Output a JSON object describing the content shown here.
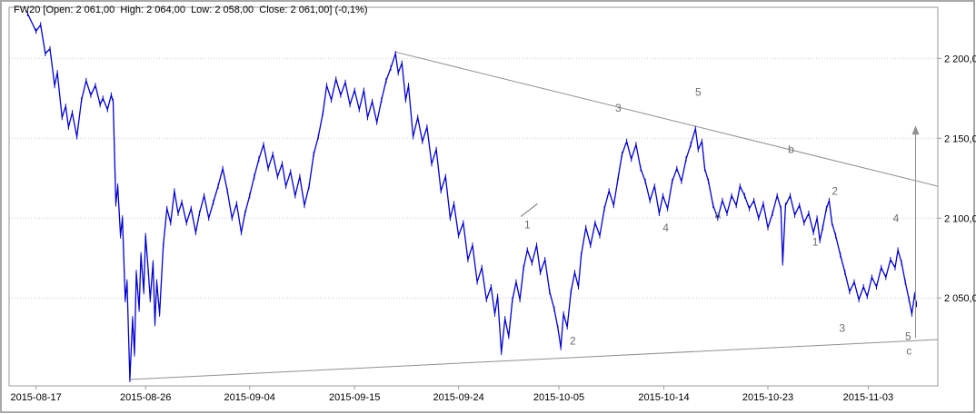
{
  "header": {
    "info": "FW20 [Open: 2 061,00  High: 2 064,00  Low: 2 058,00  Close: 2 061,00] (-0,1%)"
  },
  "colors": {
    "background": "#ffffff",
    "price": "#0000d0",
    "grid": "#c9c9c9",
    "frame": "#9a9a9a",
    "trend": "#8f8f8f",
    "annotation": "#6e6e6e",
    "text": "#000000",
    "window_border": "#a8a8a8"
  },
  "chart_data": {
    "type": "line",
    "title": "FW20",
    "instrument": "FW20",
    "open": "2 061,00",
    "high": "2 064,00",
    "low": "2 058,00",
    "close": "2 061,00",
    "change": "-0,1%",
    "xlabel": "",
    "ylabel": "",
    "grid": "horizontal",
    "legend_position": "none",
    "ylim": [
      1995,
      2232
    ],
    "y_ticks": [
      {
        "value": 2200,
        "label": "2 200,0"
      },
      {
        "value": 2150,
        "label": "2 150,0"
      },
      {
        "value": 2100,
        "label": "2 100,0"
      },
      {
        "value": 2050,
        "label": "2 050,0"
      }
    ],
    "x_ticks": [
      {
        "u": 0.029,
        "label": "2015-08-17"
      },
      {
        "u": 0.147,
        "label": "2015-08-26"
      },
      {
        "u": 0.259,
        "label": "2015-09-04"
      },
      {
        "u": 0.372,
        "label": "2015-09-15"
      },
      {
        "u": 0.484,
        "label": "2015-09-24"
      },
      {
        "u": 0.592,
        "label": "2015-10-05"
      },
      {
        "u": 0.705,
        "label": "2015-10-14"
      },
      {
        "u": 0.817,
        "label": "2015-10-23"
      },
      {
        "u": 0.925,
        "label": "2015-11-03"
      }
    ],
    "series": [
      {
        "name": "FW20 price",
        "points": [
          [
            0.02,
            2228
          ],
          [
            0.029,
            2217
          ],
          [
            0.034,
            2221
          ],
          [
            0.039,
            2203
          ],
          [
            0.044,
            2206
          ],
          [
            0.049,
            2183
          ],
          [
            0.052,
            2191
          ],
          [
            0.057,
            2163
          ],
          [
            0.061,
            2170
          ],
          [
            0.064,
            2157
          ],
          [
            0.068,
            2166
          ],
          [
            0.073,
            2151
          ],
          [
            0.078,
            2174
          ],
          [
            0.083,
            2186
          ],
          [
            0.088,
            2177
          ],
          [
            0.093,
            2183
          ],
          [
            0.098,
            2171
          ],
          [
            0.101,
            2175
          ],
          [
            0.106,
            2168
          ],
          [
            0.11,
            2177
          ],
          [
            0.112,
            2173
          ],
          [
            0.115,
            2109
          ],
          [
            0.117,
            2120
          ],
          [
            0.12,
            2089
          ],
          [
            0.122,
            2100
          ],
          [
            0.125,
            2049
          ],
          [
            0.127,
            2060
          ],
          [
            0.13,
            1999
          ],
          [
            0.133,
            2037
          ],
          [
            0.135,
            2015
          ],
          [
            0.137,
            2066
          ],
          [
            0.14,
            2043
          ],
          [
            0.142,
            2077
          ],
          [
            0.145,
            2054
          ],
          [
            0.147,
            2089
          ],
          [
            0.15,
            2066
          ],
          [
            0.152,
            2049
          ],
          [
            0.155,
            2072
          ],
          [
            0.157,
            2034
          ],
          [
            0.159,
            2060
          ],
          [
            0.162,
            2040
          ],
          [
            0.166,
            2083
          ],
          [
            0.17,
            2106
          ],
          [
            0.174,
            2097
          ],
          [
            0.178,
            2117
          ],
          [
            0.182,
            2103
          ],
          [
            0.186,
            2110
          ],
          [
            0.191,
            2097
          ],
          [
            0.196,
            2106
          ],
          [
            0.201,
            2091
          ],
          [
            0.205,
            2103
          ],
          [
            0.21,
            2114
          ],
          [
            0.215,
            2100
          ],
          [
            0.22,
            2110
          ],
          [
            0.225,
            2120
          ],
          [
            0.23,
            2131
          ],
          [
            0.235,
            2117
          ],
          [
            0.24,
            2100
          ],
          [
            0.245,
            2109
          ],
          [
            0.25,
            2091
          ],
          [
            0.254,
            2103
          ],
          [
            0.259,
            2114
          ],
          [
            0.264,
            2126
          ],
          [
            0.269,
            2137
          ],
          [
            0.274,
            2146
          ],
          [
            0.279,
            2131
          ],
          [
            0.284,
            2140
          ],
          [
            0.289,
            2126
          ],
          [
            0.294,
            2134
          ],
          [
            0.298,
            2120
          ],
          [
            0.303,
            2129
          ],
          [
            0.308,
            2114
          ],
          [
            0.313,
            2126
          ],
          [
            0.318,
            2108
          ],
          [
            0.323,
            2120
          ],
          [
            0.328,
            2140
          ],
          [
            0.333,
            2151
          ],
          [
            0.338,
            2166
          ],
          [
            0.342,
            2183
          ],
          [
            0.347,
            2174
          ],
          [
            0.352,
            2187
          ],
          [
            0.357,
            2177
          ],
          [
            0.362,
            2185
          ],
          [
            0.367,
            2171
          ],
          [
            0.372,
            2180
          ],
          [
            0.377,
            2168
          ],
          [
            0.382,
            2180
          ],
          [
            0.386,
            2163
          ],
          [
            0.391,
            2173
          ],
          [
            0.396,
            2160
          ],
          [
            0.401,
            2174
          ],
          [
            0.406,
            2186
          ],
          [
            0.411,
            2194
          ],
          [
            0.416,
            2203
          ],
          [
            0.419,
            2191
          ],
          [
            0.423,
            2197
          ],
          [
            0.427,
            2174
          ],
          [
            0.43,
            2183
          ],
          [
            0.435,
            2151
          ],
          [
            0.44,
            2163
          ],
          [
            0.445,
            2148
          ],
          [
            0.45,
            2157
          ],
          [
            0.455,
            2134
          ],
          [
            0.46,
            2143
          ],
          [
            0.465,
            2117
          ],
          [
            0.47,
            2126
          ],
          [
            0.475,
            2100
          ],
          [
            0.479,
            2109
          ],
          [
            0.484,
            2089
          ],
          [
            0.489,
            2097
          ],
          [
            0.494,
            2074
          ],
          [
            0.499,
            2083
          ],
          [
            0.504,
            2060
          ],
          [
            0.509,
            2069
          ],
          [
            0.514,
            2049
          ],
          [
            0.519,
            2057
          ],
          [
            0.523,
            2040
          ],
          [
            0.526,
            2051
          ],
          [
            0.53,
            2016
          ],
          [
            0.534,
            2037
          ],
          [
            0.538,
            2026
          ],
          [
            0.542,
            2049
          ],
          [
            0.546,
            2060
          ],
          [
            0.55,
            2049
          ],
          [
            0.554,
            2069
          ],
          [
            0.558,
            2080
          ],
          [
            0.563,
            2072
          ],
          [
            0.568,
            2083
          ],
          [
            0.572,
            2066
          ],
          [
            0.577,
            2074
          ],
          [
            0.582,
            2054
          ],
          [
            0.587,
            2043
          ],
          [
            0.591,
            2031
          ],
          [
            0.594,
            2019
          ],
          [
            0.597,
            2040
          ],
          [
            0.601,
            2032
          ],
          [
            0.605,
            2054
          ],
          [
            0.609,
            2066
          ],
          [
            0.613,
            2057
          ],
          [
            0.616,
            2077
          ],
          [
            0.621,
            2094
          ],
          [
            0.626,
            2083
          ],
          [
            0.631,
            2097
          ],
          [
            0.636,
            2089
          ],
          [
            0.641,
            2106
          ],
          [
            0.646,
            2117
          ],
          [
            0.651,
            2108
          ],
          [
            0.656,
            2126
          ],
          [
            0.66,
            2140
          ],
          [
            0.665,
            2148
          ],
          [
            0.67,
            2137
          ],
          [
            0.675,
            2146
          ],
          [
            0.68,
            2131
          ],
          [
            0.685,
            2123
          ],
          [
            0.69,
            2111
          ],
          [
            0.695,
            2120
          ],
          [
            0.7,
            2103
          ],
          [
            0.704,
            2114
          ],
          [
            0.709,
            2106
          ],
          [
            0.714,
            2123
          ],
          [
            0.719,
            2131
          ],
          [
            0.724,
            2123
          ],
          [
            0.729,
            2137
          ],
          [
            0.734,
            2146
          ],
          [
            0.739,
            2156
          ],
          [
            0.742,
            2143
          ],
          [
            0.746,
            2148
          ],
          [
            0.749,
            2131
          ],
          [
            0.753,
            2123
          ],
          [
            0.758,
            2108
          ],
          [
            0.763,
            2100
          ],
          [
            0.768,
            2111
          ],
          [
            0.773,
            2103
          ],
          [
            0.778,
            2114
          ],
          [
            0.783,
            2108
          ],
          [
            0.787,
            2120
          ],
          [
            0.792,
            2114
          ],
          [
            0.797,
            2106
          ],
          [
            0.802,
            2111
          ],
          [
            0.807,
            2100
          ],
          [
            0.812,
            2109
          ],
          [
            0.817,
            2094
          ],
          [
            0.822,
            2103
          ],
          [
            0.827,
            2114
          ],
          [
            0.831,
            2106
          ],
          [
            0.833,
            2072
          ],
          [
            0.836,
            2108
          ],
          [
            0.841,
            2114
          ],
          [
            0.846,
            2102
          ],
          [
            0.851,
            2108
          ],
          [
            0.856,
            2097
          ],
          [
            0.861,
            2103
          ],
          [
            0.866,
            2091
          ],
          [
            0.87,
            2100
          ],
          [
            0.873,
            2086
          ],
          [
            0.876,
            2094
          ],
          [
            0.88,
            2106
          ],
          [
            0.883,
            2111
          ],
          [
            0.886,
            2097
          ],
          [
            0.89,
            2089
          ],
          [
            0.895,
            2077
          ],
          [
            0.9,
            2066
          ],
          [
            0.905,
            2054
          ],
          [
            0.91,
            2060
          ],
          [
            0.915,
            2049
          ],
          [
            0.92,
            2057
          ],
          [
            0.924,
            2051
          ],
          [
            0.929,
            2063
          ],
          [
            0.934,
            2057
          ],
          [
            0.939,
            2069
          ],
          [
            0.944,
            2063
          ],
          [
            0.949,
            2074
          ],
          [
            0.954,
            2069
          ],
          [
            0.957,
            2080
          ],
          [
            0.961,
            2072
          ],
          [
            0.965,
            2060
          ],
          [
            0.969,
            2049
          ],
          [
            0.972,
            2040
          ],
          [
            0.975,
            2052
          ],
          [
            0.977,
            2046
          ]
        ]
      }
    ],
    "trendlines": [
      {
        "name": "descending-resistance-trendline",
        "from": [
          0.416,
          2204
        ],
        "to": [
          1.0,
          2120
        ]
      },
      {
        "name": "ascending-support-trendline",
        "from": [
          0.13,
          1999
        ],
        "to": [
          1.0,
          2024
        ]
      }
    ],
    "arrow": {
      "x_u": 0.976,
      "from_price": 2025,
      "to_price": 2158
    },
    "marker_line": {
      "from": [
        0.551,
        2101
      ],
      "to": [
        0.569,
        2109
      ]
    },
    "wave_labels": [
      {
        "text": "1",
        "u": 0.558,
        "price": 2096
      },
      {
        "text": "2",
        "u": 0.607,
        "price": 2023
      },
      {
        "text": "3",
        "u": 0.656,
        "price": 2169
      },
      {
        "text": "4",
        "u": 0.707,
        "price": 2094
      },
      {
        "text": "5",
        "u": 0.742,
        "price": 2179
      },
      {
        "text": "a",
        "u": 0.763,
        "price": 2102
      },
      {
        "text": "b",
        "u": 0.842,
        "price": 2143
      },
      {
        "text": "1",
        "u": 0.868,
        "price": 2085
      },
      {
        "text": "2",
        "u": 0.889,
        "price": 2117
      },
      {
        "text": "3",
        "u": 0.897,
        "price": 2031
      },
      {
        "text": "4",
        "u": 0.955,
        "price": 2100
      },
      {
        "text": "5",
        "u": 0.968,
        "price": 2026
      },
      {
        "text": "c",
        "u": 0.969,
        "price": 2017
      }
    ]
  }
}
